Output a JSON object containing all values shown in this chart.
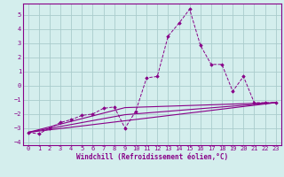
{
  "xlabel": "Windchill (Refroidissement éolien,°C)",
  "xlim": [
    -0.5,
    23.5
  ],
  "ylim": [
    -4.2,
    5.8
  ],
  "yticks": [
    -4,
    -3,
    -2,
    -1,
    0,
    1,
    2,
    3,
    4,
    5
  ],
  "xticks": [
    0,
    1,
    2,
    3,
    4,
    5,
    6,
    7,
    8,
    9,
    10,
    11,
    12,
    13,
    14,
    15,
    16,
    17,
    18,
    19,
    20,
    21,
    22,
    23
  ],
  "bg_color": "#d4eeed",
  "line_color": "#880088",
  "grid_color": "#aacccc",
  "line1_x": [
    0,
    1,
    2,
    3,
    4,
    5,
    6,
    7,
    8,
    9,
    10,
    11,
    12,
    13,
    14,
    15,
    16,
    17,
    18,
    19,
    20,
    21,
    22,
    23
  ],
  "line1_y": [
    -3.3,
    -3.4,
    -3.0,
    -2.6,
    -2.4,
    -2.1,
    -2.0,
    -1.6,
    -1.5,
    -3.0,
    -1.8,
    0.55,
    0.65,
    3.5,
    4.4,
    5.4,
    2.85,
    1.5,
    1.5,
    -0.4,
    0.65,
    -1.2,
    -1.2,
    -1.2
  ],
  "line2_x": [
    0,
    23
  ],
  "line2_y": [
    -3.3,
    -1.2
  ],
  "line3_x": [
    0,
    9,
    23
  ],
  "line3_y": [
    -3.3,
    -1.55,
    -1.2
  ],
  "line4_x": [
    0,
    9,
    23
  ],
  "line4_y": [
    -3.3,
    -2.05,
    -1.2
  ]
}
